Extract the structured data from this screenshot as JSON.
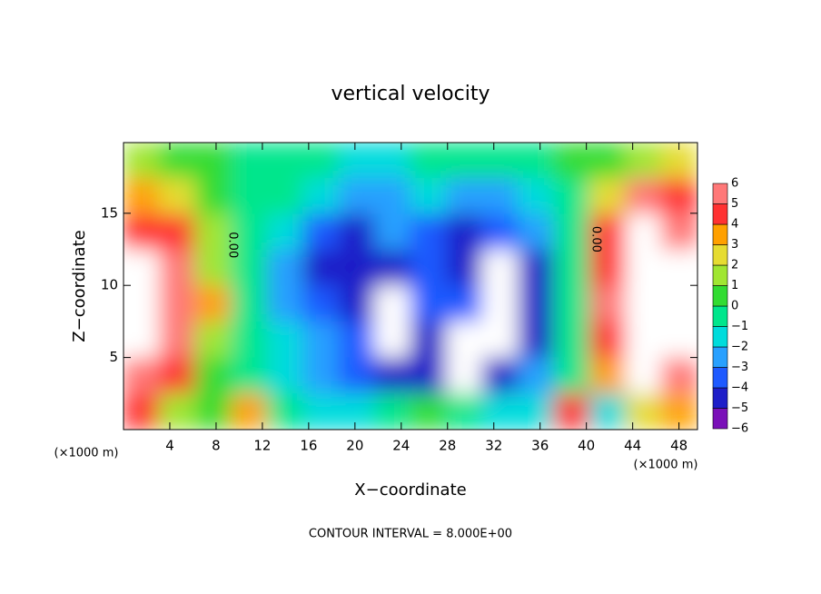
{
  "chart_data": {
    "type": "contour",
    "title": "vertical velocity",
    "xlabel": "X−coordinate",
    "ylabel": "Z−coordinate",
    "x_unit_label": "(×1000 m)",
    "footer": "CONTOUR INTERVAL = 8.000E+00",
    "contour_labels": [
      "0.00",
      "0.00"
    ],
    "xlim": [
      0,
      49.6
    ],
    "ylim": [
      0,
      19.9
    ],
    "xticks": [
      4,
      8,
      12,
      16,
      20,
      24,
      28,
      32,
      36,
      40,
      44,
      48
    ],
    "yticks": [
      5,
      10,
      15
    ],
    "z": [
      [
        1,
        0.5,
        0,
        -0.5,
        -0.5,
        -1,
        -1.5,
        -1.5,
        -1,
        -1,
        -1,
        -0.5,
        0,
        0.5,
        1.5,
        2
      ],
      [
        3,
        2,
        0.5,
        -0.5,
        -1,
        -2,
        -2.5,
        -2.5,
        -2,
        -3,
        -2.5,
        -1.5,
        -0.5,
        2,
        5,
        4
      ],
      [
        4.5,
        4,
        1,
        -0.5,
        -1.5,
        -3.5,
        -4.5,
        -3,
        -3.5,
        -4.5,
        -4,
        -3,
        -0.5,
        4,
        7,
        5
      ],
      [
        7,
        5,
        1.5,
        -0.5,
        -3,
        -4.5,
        -4.5,
        -5,
        -4,
        -4.5,
        -7,
        -5,
        -1,
        4.5,
        8,
        7
      ],
      [
        8,
        6,
        3,
        -0.5,
        -2.5,
        -3.5,
        -5,
        -8,
        -4,
        -4,
        -8,
        -5,
        -1,
        5,
        9,
        8
      ],
      [
        7,
        5,
        1,
        -0.5,
        -2,
        -3,
        -4,
        -8,
        -5,
        -8,
        -7,
        -4.5,
        -1,
        4,
        9,
        7
      ],
      [
        6,
        4,
        0.5,
        -1,
        -2,
        -2.5,
        -4,
        -5,
        -4.5,
        -8,
        -4.5,
        -3,
        -1,
        3.5,
        7,
        5
      ],
      [
        4,
        1.5,
        0,
        3,
        -1,
        -2,
        -2,
        -1,
        0,
        -1,
        -1.5,
        -1.5,
        4,
        -2,
        2,
        3
      ]
    ],
    "colorbar": {
      "levels": [
        {
          "value": -6,
          "label": "−6"
        },
        {
          "value": -5,
          "label": "−5"
        },
        {
          "value": -4,
          "label": "−4"
        },
        {
          "value": -3,
          "label": "−3"
        },
        {
          "value": -2,
          "label": "−2"
        },
        {
          "value": -1,
          "label": "−1"
        },
        0,
        1,
        2,
        3,
        4,
        5,
        6
      ],
      "colors": [
        "#7a10b8",
        "#1e1ec8",
        "#1e5aff",
        "#28a0ff",
        "#00dcdc",
        "#00e68c",
        "#32dc32",
        "#a0e632",
        "#e6dc32",
        "#ffa000",
        "#ff3232",
        "#ff7878"
      ]
    }
  }
}
